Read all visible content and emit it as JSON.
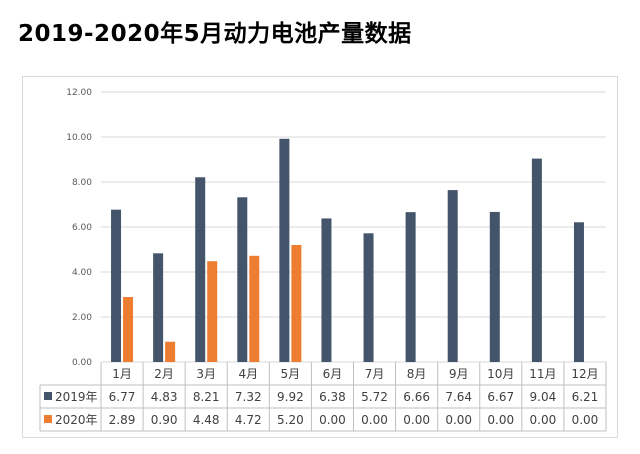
{
  "title": "2019-2020年5月动力电池产量数据",
  "chart_data": {
    "type": "bar",
    "title": "2019-2020年5月动力电池产量数据",
    "categories": [
      "1月",
      "2月",
      "3月",
      "4月",
      "5月",
      "6月",
      "7月",
      "8月",
      "9月",
      "10月",
      "11月",
      "12月"
    ],
    "series": [
      {
        "name": "2019年",
        "color": "#44546a",
        "values": [
          6.77,
          4.83,
          8.21,
          7.32,
          9.92,
          6.38,
          5.72,
          6.66,
          7.64,
          6.67,
          9.04,
          6.21
        ],
        "display": [
          "6.77",
          "4.83",
          "8.21",
          "7.32",
          "9.92",
          "6.38",
          "5.72",
          "6.66",
          "7.64",
          "6.67",
          "9.04",
          "6.21"
        ]
      },
      {
        "name": "2020年",
        "color": "#ed7d31",
        "values": [
          2.89,
          0.9,
          4.48,
          4.72,
          5.2,
          0.0,
          0.0,
          0.0,
          0.0,
          0.0,
          0.0,
          0.0
        ],
        "display": [
          "2.89",
          "0.90",
          "4.48",
          "4.72",
          "5.20",
          "0.00",
          "0.00",
          "0.00",
          "0.00",
          "0.00",
          "0.00",
          "0.00"
        ]
      }
    ],
    "yticks": [
      "0.00",
      "2.00",
      "4.00",
      "6.00",
      "8.00",
      "10.00",
      "12.00"
    ],
    "ylim": [
      0,
      12
    ],
    "xlabel": "",
    "ylabel": "",
    "grid": true,
    "legend": "data-table"
  }
}
